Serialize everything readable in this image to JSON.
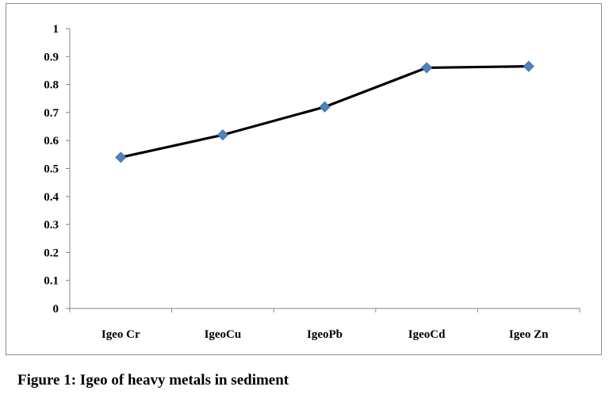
{
  "chart_data": {
    "type": "line",
    "categories": [
      "Igeo Cr",
      "IgeoCu",
      "IgeoPb",
      "IgeoCd",
      "Igeo Zn"
    ],
    "values": [
      0.54,
      0.62,
      0.72,
      0.86,
      0.865
    ],
    "y_ticks": [
      "0",
      "0.1",
      "0.2",
      "0.3",
      "0.4",
      "0.5",
      "0.6",
      "0.7",
      "0.8",
      "0.9",
      "1"
    ],
    "ylim": [
      0,
      1
    ],
    "grid": false,
    "legend": "none",
    "line_color": "#000000",
    "marker_color": "#4f81bd",
    "marker": "diamond"
  },
  "caption": "Figure 1: Igeo of heavy metals in sediment"
}
